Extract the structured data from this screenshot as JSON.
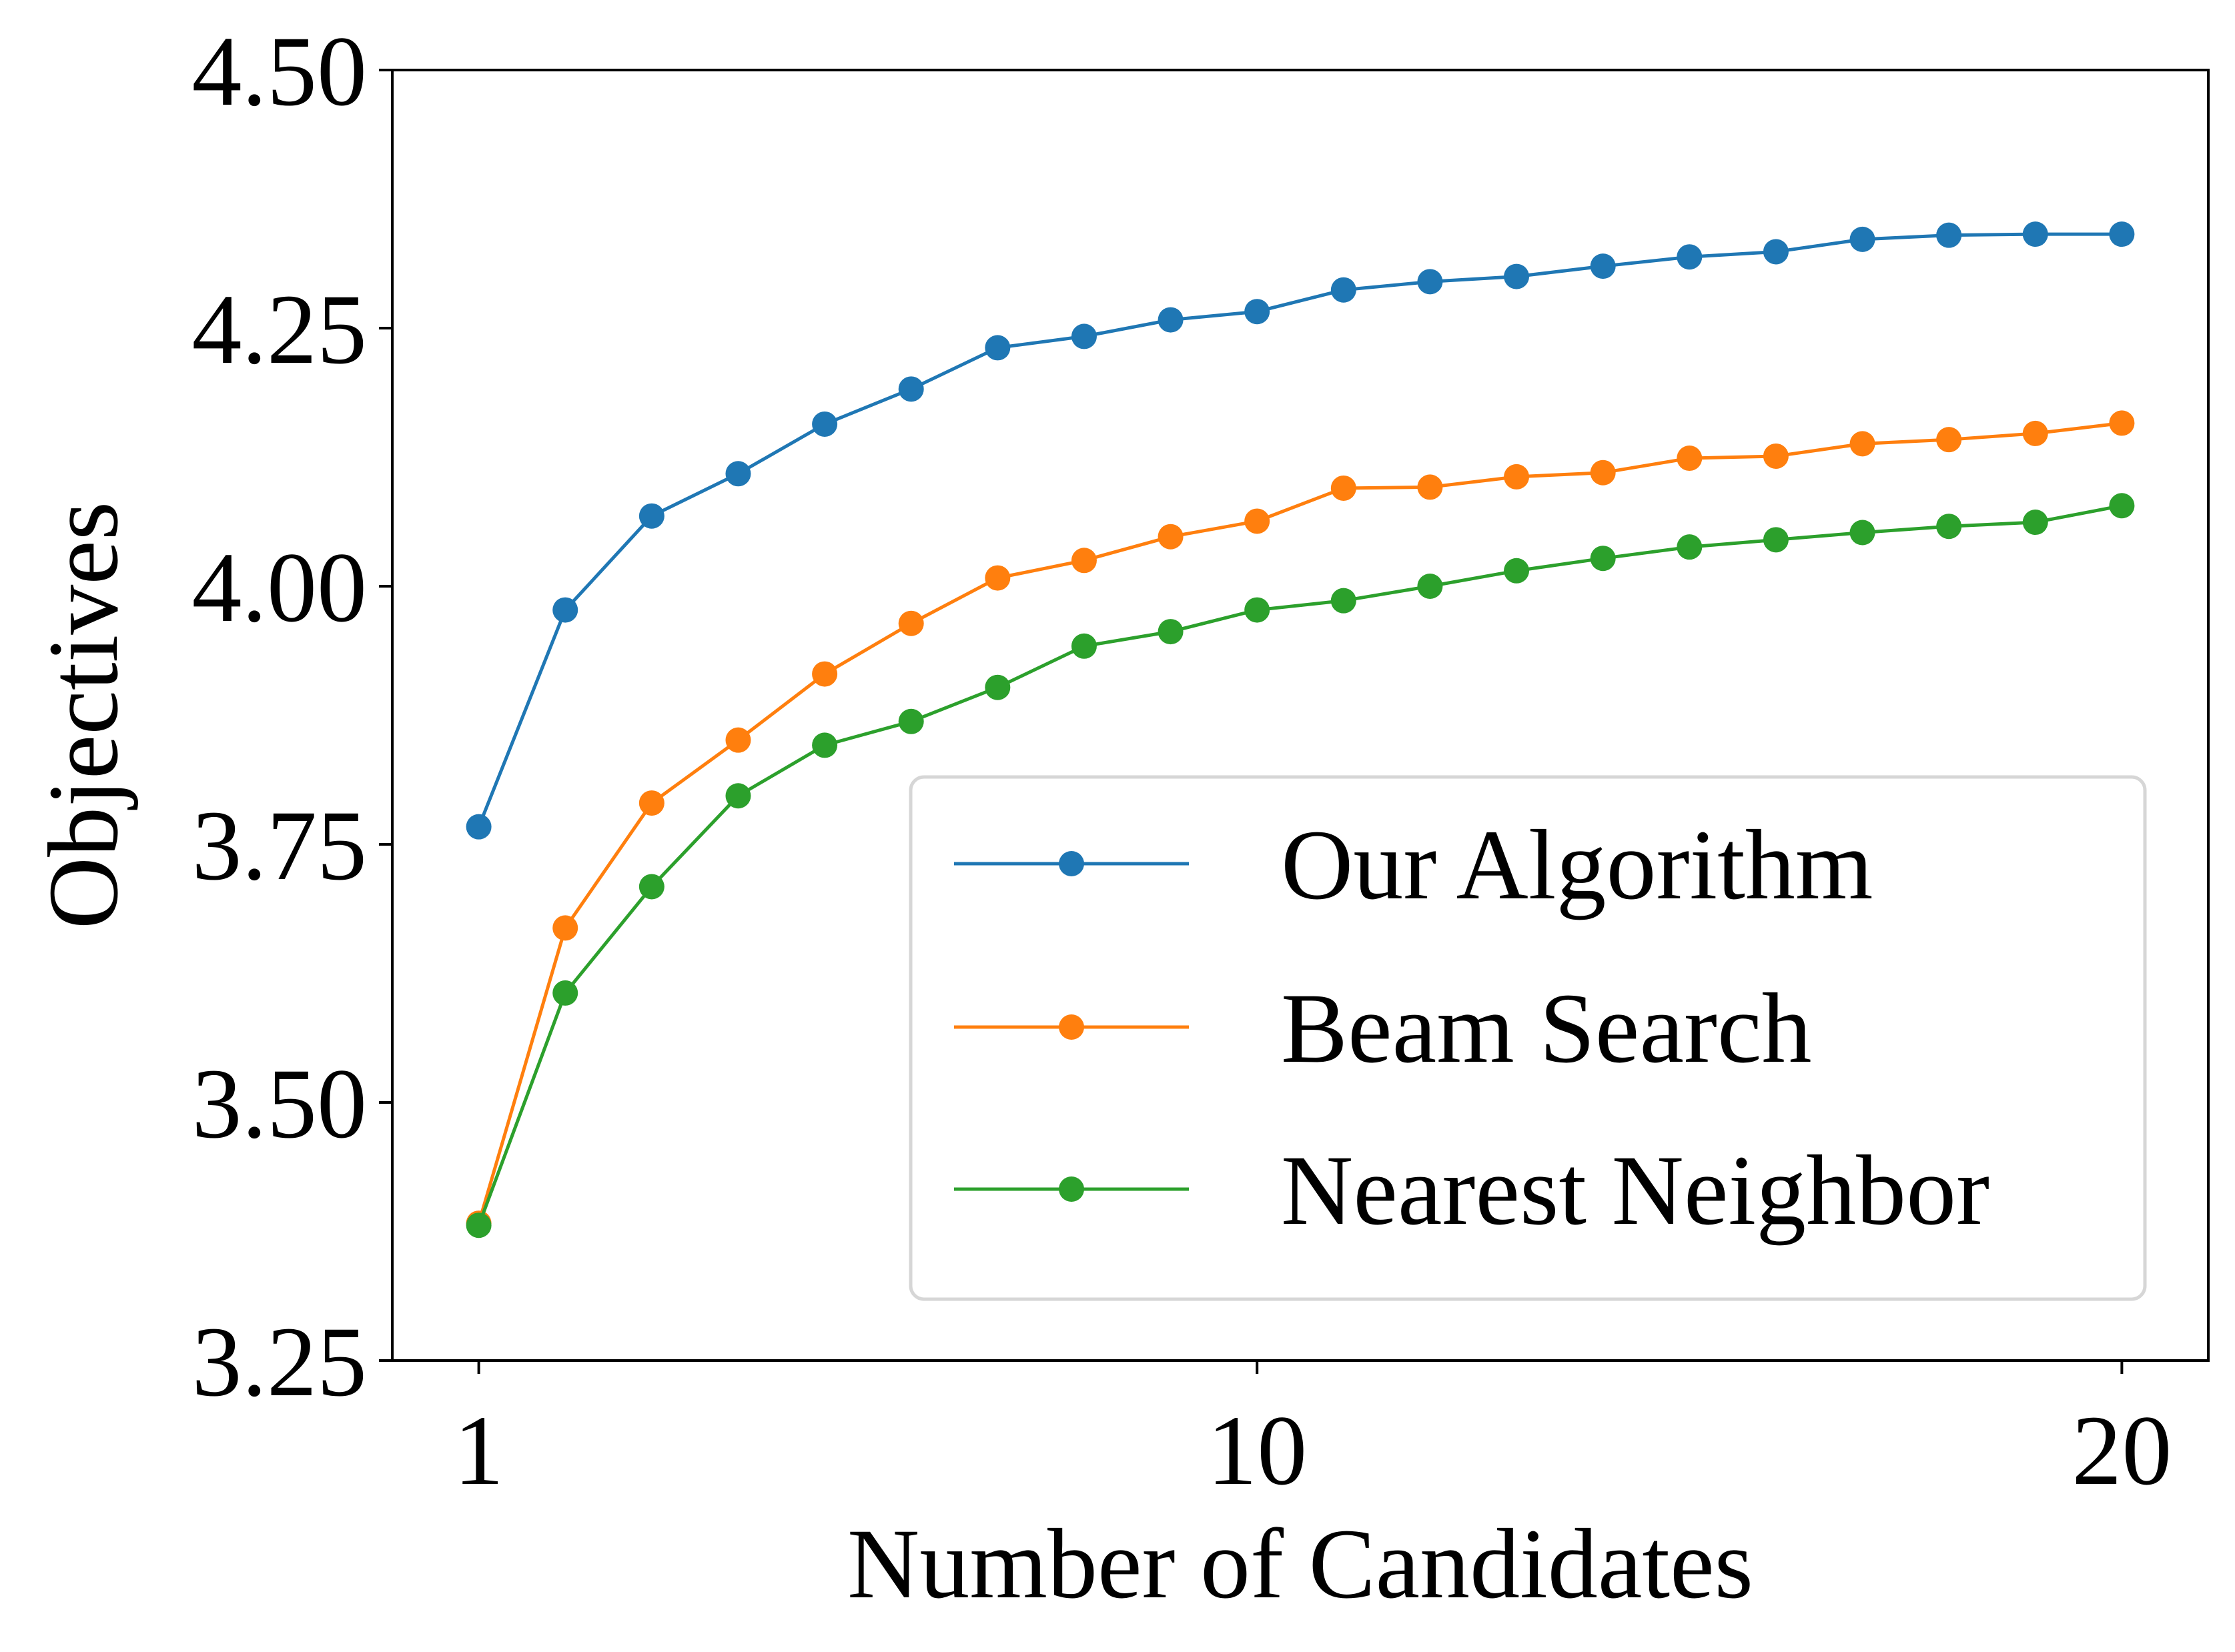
{
  "chart_data": {
    "type": "line",
    "title": "",
    "xlabel": "Number of Candidates",
    "ylabel": "Objectives",
    "xlim": [
      0,
      21
    ],
    "ylim": [
      3.25,
      4.5
    ],
    "x_ticks": [
      1,
      10,
      20
    ],
    "x_tick_labels": [
      "1",
      "10",
      "20"
    ],
    "y_ticks": [
      3.25,
      3.5,
      3.75,
      4.0,
      4.25,
      4.5
    ],
    "y_tick_labels": [
      "3.25",
      "3.50",
      "3.75",
      "4.00",
      "4.25",
      "4.50"
    ],
    "grid": false,
    "legend_position": "lower-right",
    "x": [
      1,
      2,
      3,
      4,
      5,
      6,
      7,
      8,
      9,
      10,
      11,
      12,
      13,
      14,
      15,
      16,
      17,
      18,
      19,
      20
    ],
    "series": [
      {
        "name": "Our Algorithm",
        "color": "#1f77b4",
        "values": [
          3.767,
          3.977,
          4.068,
          4.109,
          4.157,
          4.191,
          4.231,
          4.242,
          4.258,
          4.266,
          4.287,
          4.295,
          4.3,
          4.31,
          4.319,
          4.324,
          4.336,
          4.34,
          4.341,
          4.341
        ]
      },
      {
        "name": "Beam Search",
        "color": "#ff7f0e",
        "values": [
          3.383,
          3.669,
          3.79,
          3.851,
          3.915,
          3.964,
          4.008,
          4.025,
          4.048,
          4.063,
          4.095,
          4.096,
          4.106,
          4.11,
          4.124,
          4.126,
          4.138,
          4.142,
          4.148,
          4.158
        ]
      },
      {
        "name": "Nearest Neighbor",
        "color": "#2ca02c",
        "values": [
          3.381,
          3.606,
          3.709,
          3.797,
          3.846,
          3.869,
          3.902,
          3.942,
          3.956,
          3.977,
          3.986,
          4.0,
          4.015,
          4.027,
          4.038,
          4.045,
          4.052,
          4.058,
          4.062,
          4.078
        ]
      }
    ]
  }
}
